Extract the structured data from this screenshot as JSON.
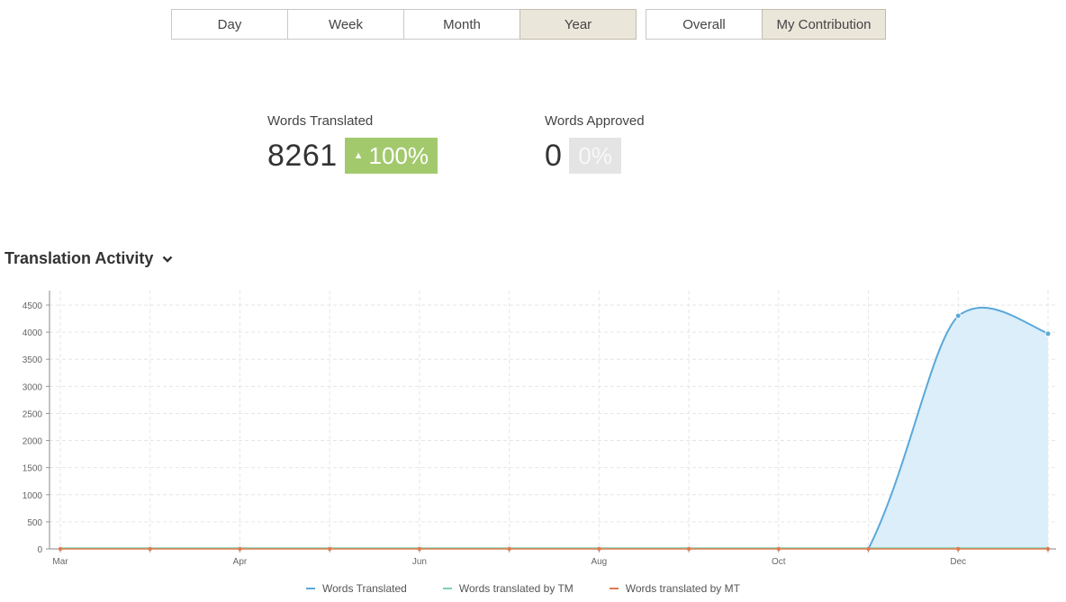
{
  "filters": {
    "period": [
      {
        "label": "Day",
        "active": false
      },
      {
        "label": "Week",
        "active": false
      },
      {
        "label": "Month",
        "active": false
      },
      {
        "label": "Year",
        "active": true
      }
    ],
    "scope": [
      {
        "label": "Overall",
        "active": false
      },
      {
        "label": "My Contribution",
        "active": true
      }
    ]
  },
  "stats": {
    "translated": {
      "label": "Words Translated",
      "value": "8261",
      "change": "100%",
      "direction": "up"
    },
    "approved": {
      "label": "Words Approved",
      "value": "0",
      "change": "0%",
      "direction": "flat"
    }
  },
  "section": {
    "title": "Translation Activity"
  },
  "colors": {
    "translated": "#5aa8da",
    "tm": "#7ecfb0",
    "mt": "#e07b4f",
    "area": "#dbeef9"
  },
  "chart_data": {
    "type": "area",
    "x": [
      "Mar",
      "",
      "Apr",
      "",
      "Jun",
      "",
      "Aug",
      "",
      "Oct",
      "",
      "Dec",
      ""
    ],
    "tick_labels": [
      "Mar",
      "Apr",
      "Jun",
      "Aug",
      "Oct",
      "Dec"
    ],
    "y_ticks": [
      0,
      500,
      1000,
      1500,
      2000,
      2500,
      3000,
      3500,
      4000,
      4500
    ],
    "ylim": [
      0,
      4700
    ],
    "grid": true,
    "legend": "bottom-center",
    "series": [
      {
        "name": "Words Translated",
        "values": [
          0,
          0,
          0,
          0,
          0,
          0,
          0,
          0,
          0,
          0,
          4300,
          3970
        ]
      },
      {
        "name": "Words translated by TM",
        "values": [
          0,
          0,
          0,
          0,
          0,
          0,
          0,
          0,
          0,
          0,
          0,
          0
        ]
      },
      {
        "name": "Words translated by MT",
        "values": [
          0,
          0,
          0,
          0,
          0,
          0,
          0,
          0,
          0,
          0,
          0,
          0
        ]
      }
    ]
  }
}
